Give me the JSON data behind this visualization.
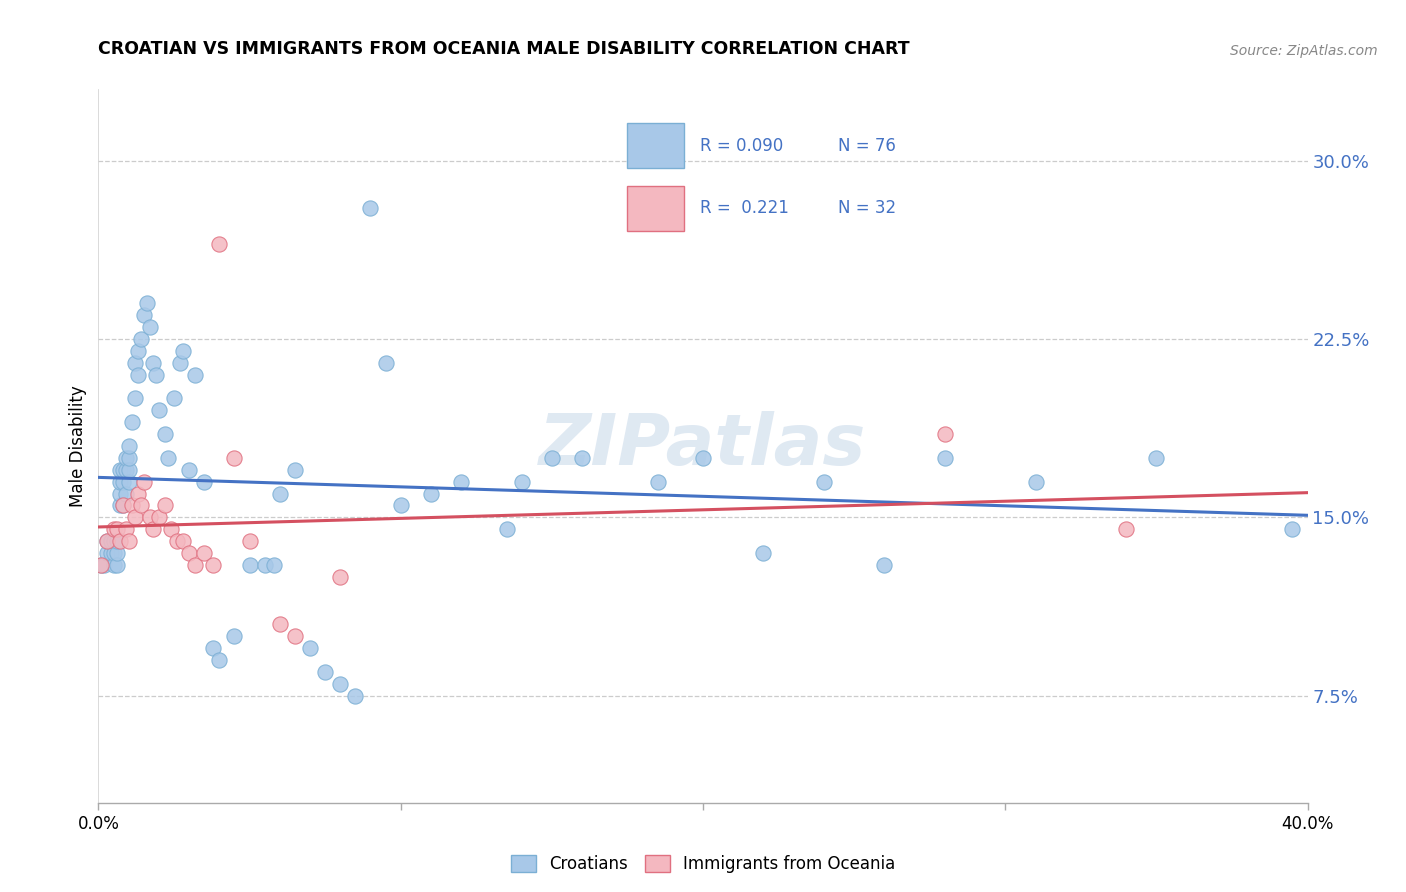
{
  "title": "CROATIAN VS IMMIGRANTS FROM OCEANIA MALE DISABILITY CORRELATION CHART",
  "source": "Source: ZipAtlas.com",
  "ylabel": "Male Disability",
  "ytick_labels": [
    "7.5%",
    "15.0%",
    "22.5%",
    "30.0%"
  ],
  "ytick_values": [
    0.075,
    0.15,
    0.225,
    0.3
  ],
  "xlim": [
    0.0,
    0.4
  ],
  "ylim": [
    0.03,
    0.33
  ],
  "legend_label1": "Croatians",
  "legend_label2": "Immigrants from Oceania",
  "R1": "0.090",
  "N1": "76",
  "R2": "0.221",
  "N2": "32",
  "blue_color": "#a8c8e8",
  "blue_edge_color": "#7bafd4",
  "pink_color": "#f4b8c0",
  "pink_edge_color": "#e07080",
  "blue_line_color": "#4472c4",
  "pink_line_color": "#d45060",
  "watermark": "ZIPatlas",
  "blue_x": [
    0.001,
    0.002,
    0.003,
    0.003,
    0.004,
    0.004,
    0.005,
    0.005,
    0.005,
    0.006,
    0.006,
    0.006,
    0.007,
    0.007,
    0.007,
    0.007,
    0.008,
    0.008,
    0.008,
    0.009,
    0.009,
    0.009,
    0.01,
    0.01,
    0.01,
    0.01,
    0.011,
    0.012,
    0.012,
    0.013,
    0.013,
    0.014,
    0.015,
    0.016,
    0.017,
    0.018,
    0.019,
    0.02,
    0.022,
    0.023,
    0.025,
    0.027,
    0.028,
    0.03,
    0.032,
    0.035,
    0.038,
    0.04,
    0.045,
    0.05,
    0.055,
    0.058,
    0.06,
    0.065,
    0.07,
    0.075,
    0.08,
    0.085,
    0.09,
    0.095,
    0.1,
    0.11,
    0.12,
    0.135,
    0.14,
    0.15,
    0.16,
    0.185,
    0.2,
    0.22,
    0.24,
    0.26,
    0.28,
    0.31,
    0.35,
    0.395
  ],
  "blue_y": [
    0.13,
    0.13,
    0.135,
    0.14,
    0.135,
    0.14,
    0.13,
    0.135,
    0.14,
    0.13,
    0.135,
    0.14,
    0.155,
    0.16,
    0.165,
    0.17,
    0.155,
    0.165,
    0.17,
    0.16,
    0.17,
    0.175,
    0.165,
    0.17,
    0.175,
    0.18,
    0.19,
    0.2,
    0.215,
    0.21,
    0.22,
    0.225,
    0.235,
    0.24,
    0.23,
    0.215,
    0.21,
    0.195,
    0.185,
    0.175,
    0.2,
    0.215,
    0.22,
    0.17,
    0.21,
    0.165,
    0.095,
    0.09,
    0.1,
    0.13,
    0.13,
    0.13,
    0.16,
    0.17,
    0.095,
    0.085,
    0.08,
    0.075,
    0.28,
    0.215,
    0.155,
    0.16,
    0.165,
    0.145,
    0.165,
    0.175,
    0.175,
    0.165,
    0.175,
    0.135,
    0.165,
    0.13,
    0.175,
    0.165,
    0.175,
    0.145
  ],
  "pink_x": [
    0.001,
    0.003,
    0.005,
    0.006,
    0.007,
    0.008,
    0.009,
    0.01,
    0.011,
    0.012,
    0.013,
    0.014,
    0.015,
    0.017,
    0.018,
    0.02,
    0.022,
    0.024,
    0.026,
    0.028,
    0.03,
    0.032,
    0.035,
    0.038,
    0.04,
    0.045,
    0.05,
    0.06,
    0.065,
    0.08,
    0.28,
    0.34
  ],
  "pink_y": [
    0.13,
    0.14,
    0.145,
    0.145,
    0.14,
    0.155,
    0.145,
    0.14,
    0.155,
    0.15,
    0.16,
    0.155,
    0.165,
    0.15,
    0.145,
    0.15,
    0.155,
    0.145,
    0.14,
    0.14,
    0.135,
    0.13,
    0.135,
    0.13,
    0.265,
    0.175,
    0.14,
    0.105,
    0.1,
    0.125,
    0.185,
    0.145
  ]
}
